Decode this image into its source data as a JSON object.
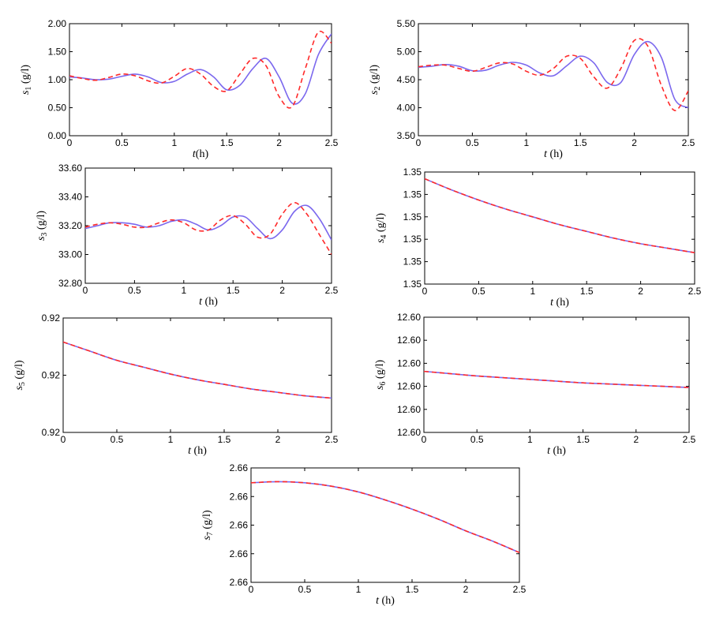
{
  "colors": {
    "model": "#7b68ee",
    "data": "#ff2a2a",
    "axis": "#000000"
  },
  "chart_data": [
    {
      "type": "line",
      "xlabel": "t(h)",
      "ylabel": "s1 (g/l)",
      "xlim": [
        0,
        2.5
      ],
      "ylim": [
        0,
        2.0
      ],
      "xticks": [
        "0",
        "0.5",
        "1",
        "1.5",
        "2",
        "2.5"
      ],
      "yticks": [
        "0.00",
        "0.50",
        "1.00",
        "1.50",
        "2.00"
      ],
      "series": [
        {
          "style": "solid",
          "color": "#7b68ee",
          "x": [
            0,
            0.125,
            0.25,
            0.375,
            0.5,
            0.625,
            0.75,
            0.875,
            1.0,
            1.125,
            1.25,
            1.375,
            1.5,
            1.625,
            1.75,
            1.875,
            2.0,
            2.125,
            2.25,
            2.375,
            2.5
          ],
          "y": [
            1.05,
            1.03,
            1.0,
            1.01,
            1.06,
            1.1,
            1.05,
            0.95,
            0.97,
            1.1,
            1.18,
            1.05,
            0.82,
            0.9,
            1.2,
            1.38,
            1.05,
            0.58,
            0.75,
            1.45,
            1.82
          ]
        },
        {
          "style": "dashed",
          "color": "#ff2a2a",
          "x": [
            0,
            0.125,
            0.25,
            0.375,
            0.5,
            0.625,
            0.75,
            0.875,
            1.0,
            1.125,
            1.25,
            1.375,
            1.5,
            1.625,
            1.75,
            1.875,
            2.0,
            2.125,
            2.25,
            2.375,
            2.5
          ],
          "y": [
            1.07,
            1.02,
            0.99,
            1.04,
            1.1,
            1.07,
            0.98,
            0.94,
            1.06,
            1.2,
            1.1,
            0.88,
            0.8,
            1.1,
            1.38,
            1.25,
            0.7,
            0.52,
            1.2,
            1.85,
            1.65
          ]
        }
      ]
    },
    {
      "type": "line",
      "xlabel": "t (h)",
      "ylabel": "s2 (g/l)",
      "xlim": [
        0,
        2.5
      ],
      "ylim": [
        3.5,
        5.5
      ],
      "xticks": [
        "0",
        "0.5",
        "1",
        "1.5",
        "2",
        "2.5"
      ],
      "yticks": [
        "3.50",
        "4.00",
        "4.50",
        "5.00",
        "5.50"
      ],
      "series": [
        {
          "style": "solid",
          "color": "#7b68ee",
          "x": [
            0,
            0.125,
            0.25,
            0.375,
            0.5,
            0.625,
            0.75,
            0.875,
            1.0,
            1.125,
            1.25,
            1.375,
            1.5,
            1.625,
            1.75,
            1.875,
            2.0,
            2.125,
            2.25,
            2.375,
            2.5
          ],
          "y": [
            4.72,
            4.74,
            4.77,
            4.74,
            4.66,
            4.67,
            4.76,
            4.81,
            4.76,
            4.62,
            4.57,
            4.75,
            4.92,
            4.8,
            4.45,
            4.45,
            4.95,
            5.18,
            4.9,
            4.15,
            4.0
          ]
        },
        {
          "style": "dashed",
          "color": "#ff2a2a",
          "x": [
            0,
            0.125,
            0.25,
            0.375,
            0.5,
            0.625,
            0.75,
            0.875,
            1.0,
            1.125,
            1.25,
            1.375,
            1.5,
            1.625,
            1.75,
            1.875,
            2.0,
            2.125,
            2.25,
            2.375,
            2.5
          ],
          "y": [
            4.73,
            4.76,
            4.76,
            4.7,
            4.65,
            4.72,
            4.8,
            4.78,
            4.65,
            4.58,
            4.7,
            4.92,
            4.88,
            4.55,
            4.35,
            4.7,
            5.2,
            5.1,
            4.4,
            3.95,
            4.3
          ]
        }
      ]
    },
    {
      "type": "line",
      "xlabel": "t (h)",
      "ylabel": "s3 (g/l)",
      "xlim": [
        0,
        2.5
      ],
      "ylim": [
        32.8,
        33.6
      ],
      "xticks": [
        "0",
        "0.5",
        "1",
        "1.5",
        "2",
        "2.5"
      ],
      "yticks": [
        "32.80",
        "33.00",
        "33.20",
        "33.40",
        "33.60"
      ],
      "series": [
        {
          "style": "solid",
          "color": "#7b68ee",
          "x": [
            0,
            0.125,
            0.25,
            0.375,
            0.5,
            0.625,
            0.75,
            0.875,
            1.0,
            1.125,
            1.25,
            1.375,
            1.5,
            1.625,
            1.75,
            1.875,
            2.0,
            2.125,
            2.25,
            2.375,
            2.5
          ],
          "y": [
            33.18,
            33.2,
            33.22,
            33.22,
            33.21,
            33.19,
            33.2,
            33.23,
            33.24,
            33.21,
            33.17,
            33.2,
            33.26,
            33.26,
            33.18,
            33.11,
            33.17,
            33.3,
            33.34,
            33.25,
            33.1
          ]
        },
        {
          "style": "dashed",
          "color": "#ff2a2a",
          "x": [
            0,
            0.125,
            0.25,
            0.375,
            0.5,
            0.625,
            0.75,
            0.875,
            1.0,
            1.125,
            1.25,
            1.375,
            1.5,
            1.625,
            1.75,
            1.875,
            2.0,
            2.125,
            2.25,
            2.375,
            2.5
          ],
          "y": [
            33.19,
            33.21,
            33.22,
            33.21,
            33.19,
            33.19,
            33.22,
            33.24,
            33.22,
            33.17,
            33.17,
            33.24,
            33.27,
            33.21,
            33.12,
            33.14,
            33.28,
            33.36,
            33.28,
            33.14,
            33.0
          ]
        }
      ]
    },
    {
      "type": "line",
      "xlabel": "t (h)",
      "ylabel": "s4 (g/l)",
      "xlim": [
        0,
        2.5
      ],
      "ylim": [
        0,
        1
      ],
      "xticks": [
        "0",
        "0.5",
        "1",
        "1.5",
        "2",
        "2.5"
      ],
      "yticks": [
        "1.35",
        "1.35",
        "1.35",
        "1.35",
        "1.35",
        "1.35"
      ],
      "series": [
        {
          "style": "solid",
          "color": "#7b68ee",
          "x": [
            0,
            0.25,
            0.5,
            0.75,
            1.0,
            1.25,
            1.5,
            1.75,
            2.0,
            2.25,
            2.5
          ],
          "y": [
            0.94,
            0.84,
            0.75,
            0.67,
            0.6,
            0.53,
            0.47,
            0.41,
            0.36,
            0.32,
            0.28
          ]
        },
        {
          "style": "dashed",
          "color": "#ff2a2a",
          "x": [
            0,
            0.25,
            0.5,
            0.75,
            1.0,
            1.25,
            1.5,
            1.75,
            2.0,
            2.25,
            2.5
          ],
          "y": [
            0.94,
            0.84,
            0.75,
            0.67,
            0.6,
            0.53,
            0.47,
            0.41,
            0.36,
            0.32,
            0.28
          ]
        }
      ]
    },
    {
      "type": "line",
      "xlabel": "t (h)",
      "ylabel": "s5 (g/l)",
      "xlim": [
        0,
        2.5
      ],
      "ylim": [
        0,
        1
      ],
      "xticks": [
        "0",
        "0.5",
        "1",
        "1.5",
        "2",
        "2.5"
      ],
      "yticks": [
        "0.92",
        "0.92",
        "0.92"
      ],
      "series": [
        {
          "style": "solid",
          "color": "#7b68ee",
          "x": [
            0,
            0.25,
            0.5,
            0.75,
            1.0,
            1.25,
            1.5,
            1.75,
            2.0,
            2.25,
            2.5
          ],
          "y": [
            0.79,
            0.71,
            0.63,
            0.57,
            0.51,
            0.46,
            0.42,
            0.38,
            0.35,
            0.32,
            0.3
          ]
        },
        {
          "style": "dashed",
          "color": "#ff2a2a",
          "x": [
            0,
            0.25,
            0.5,
            0.75,
            1.0,
            1.25,
            1.5,
            1.75,
            2.0,
            2.25,
            2.5
          ],
          "y": [
            0.79,
            0.71,
            0.63,
            0.57,
            0.51,
            0.46,
            0.42,
            0.38,
            0.35,
            0.32,
            0.3
          ]
        }
      ]
    },
    {
      "type": "line",
      "xlabel": "t (h)",
      "ylabel": "s6 (g/l)",
      "xlim": [
        0,
        2.5
      ],
      "ylim": [
        0,
        1
      ],
      "xticks": [
        "0",
        "0.5",
        "1",
        "1.5",
        "2",
        "2.5"
      ],
      "yticks": [
        "12.60",
        "12.60",
        "12.60",
        "12.60",
        "12.60",
        "12.60"
      ],
      "series": [
        {
          "style": "solid",
          "color": "#7b68ee",
          "x": [
            0,
            0.25,
            0.5,
            0.75,
            1.0,
            1.25,
            1.5,
            1.75,
            2.0,
            2.25,
            2.5
          ],
          "y": [
            0.53,
            0.51,
            0.49,
            0.475,
            0.46,
            0.445,
            0.43,
            0.42,
            0.41,
            0.4,
            0.39
          ]
        },
        {
          "style": "dashed",
          "color": "#ff2a2a",
          "x": [
            0,
            0.25,
            0.5,
            0.75,
            1.0,
            1.25,
            1.5,
            1.75,
            2.0,
            2.25,
            2.5
          ],
          "y": [
            0.53,
            0.51,
            0.49,
            0.475,
            0.46,
            0.445,
            0.43,
            0.42,
            0.41,
            0.4,
            0.39
          ]
        }
      ]
    },
    {
      "type": "line",
      "xlabel": "t (h)",
      "ylabel": "s7 (g/l)",
      "xlim": [
        0,
        2.5
      ],
      "ylim": [
        0,
        1
      ],
      "xticks": [
        "0",
        "0.5",
        "1",
        "1.5",
        "2",
        "2.5"
      ],
      "yticks": [
        "2.66",
        "2.66",
        "2.66",
        "2.66",
        "2.66"
      ],
      "series": [
        {
          "style": "solid",
          "color": "#7b68ee",
          "x": [
            0,
            0.25,
            0.5,
            0.75,
            1.0,
            1.25,
            1.5,
            1.75,
            2.0,
            2.25,
            2.5
          ],
          "y": [
            0.87,
            0.88,
            0.87,
            0.84,
            0.79,
            0.72,
            0.64,
            0.55,
            0.45,
            0.36,
            0.26
          ]
        },
        {
          "style": "dashed",
          "color": "#ff2a2a",
          "x": [
            0,
            0.25,
            0.5,
            0.75,
            1.0,
            1.25,
            1.5,
            1.75,
            2.0,
            2.25,
            2.5
          ],
          "y": [
            0.87,
            0.88,
            0.87,
            0.84,
            0.79,
            0.72,
            0.64,
            0.55,
            0.45,
            0.36,
            0.26
          ]
        }
      ]
    }
  ]
}
